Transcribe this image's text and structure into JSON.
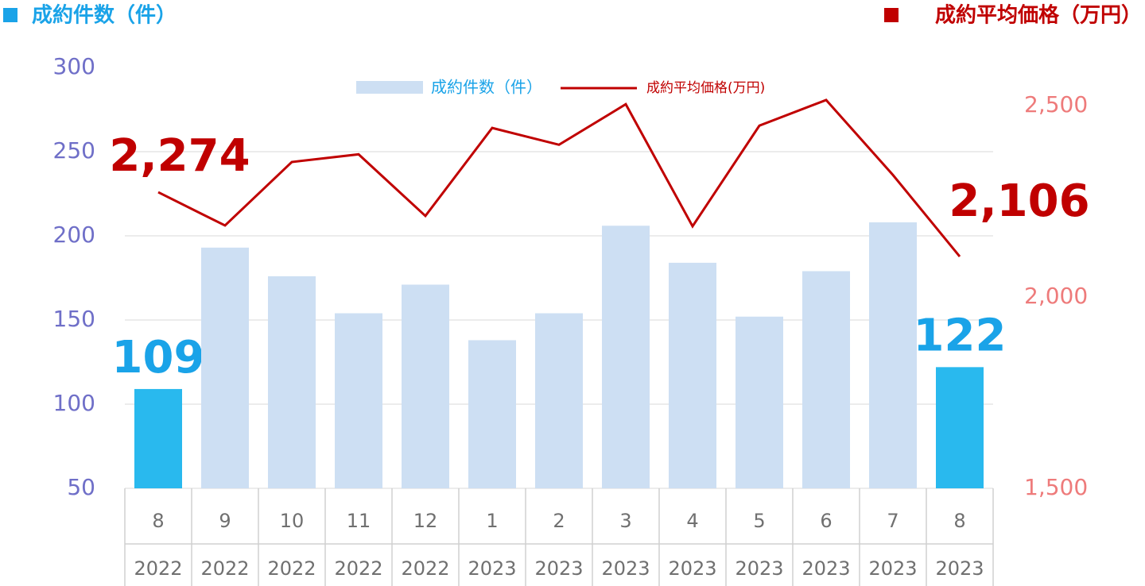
{
  "chart_data": {
    "type": "bar-line",
    "y_label": "成約件数（件）",
    "y_label_color": "#1aa3e8",
    "y2_label": "成約平均価格（万円）",
    "y2_label_color": "#c00000",
    "categories": [
      "8",
      "9",
      "10",
      "11",
      "12",
      "1",
      "2",
      "3",
      "4",
      "5",
      "6",
      "7",
      "8"
    ],
    "category_groups": [
      "2022",
      "2022",
      "2022",
      "2022",
      "2022",
      "2023",
      "2023",
      "2023",
      "2023",
      "2023",
      "2023",
      "2023",
      "2023"
    ],
    "series": [
      {
        "name": "成約件数（件）",
        "type": "bar",
        "color": "#cddff3",
        "colors": [
          "#29b9ee",
          "#cddff3",
          "#cddff3",
          "#cddff3",
          "#cddff3",
          "#cddff3",
          "#cddff3",
          "#cddff3",
          "#cddff3",
          "#cddff3",
          "#cddff3",
          "#cddff3",
          "#29b9ee"
        ],
        "label_color": "#1aa3e8",
        "values": [
          109,
          193,
          176,
          154,
          171,
          138,
          154,
          206,
          184,
          152,
          179,
          208,
          122
        ],
        "value_labels": [
          "109",
          null,
          null,
          null,
          null,
          null,
          null,
          null,
          null,
          null,
          null,
          null,
          "122"
        ]
      },
      {
        "name": "成約平均価格(万円)",
        "type": "line",
        "axis": "y2",
        "color": "#c00000",
        "label_color": "#c00000",
        "values": [
          2274,
          2187,
          2353,
          2373,
          2212,
          2442,
          2398,
          2504,
          2185,
          2448,
          2515,
          2319,
          2106
        ],
        "value_labels": [
          "2,274",
          null,
          null,
          null,
          null,
          null,
          null,
          null,
          null,
          null,
          null,
          null,
          "2,106"
        ]
      }
    ],
    "ylim": [
      50,
      300
    ],
    "yticks": [
      50,
      100,
      150,
      200,
      250,
      300
    ],
    "ytick_color": "#6f6fc8",
    "y2lim": [
      1500,
      2600
    ],
    "y2ticks": [
      {
        "value": 1500,
        "label": "1,500"
      },
      {
        "value": 2000,
        "label": "2,000"
      },
      {
        "value": 2500,
        "label": "2,500"
      }
    ],
    "y2tick_color": "#ee7b7b",
    "grid": true,
    "legend": "top"
  }
}
